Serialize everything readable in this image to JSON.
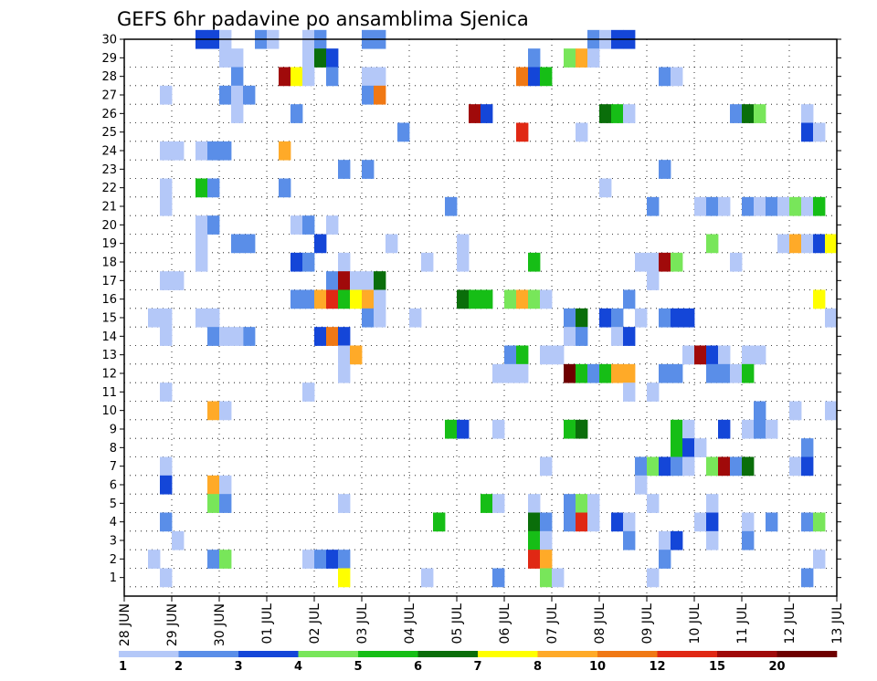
{
  "chart_data": {
    "type": "heatmap",
    "title": "GEFS 6hr padavine po ansamblima Sjenica",
    "xlabel": "",
    "ylabel": "",
    "x_tick_labels": [
      "28 JUN",
      "29 JUN",
      "30 JUN",
      "01 JUL",
      "02 JUL",
      "03 JUL",
      "04 JUL",
      "05 JUL",
      "06 JUL",
      "07 JUL",
      "08 JUL",
      "09 JUL",
      "10 JUL",
      "11 JUL",
      "12 JUL",
      "13 JUL"
    ],
    "y_tick_labels": [
      "1",
      "2",
      "3",
      "4",
      "5",
      "6",
      "7",
      "8",
      "9",
      "10",
      "11",
      "12",
      "13",
      "14",
      "15",
      "16",
      "17",
      "18",
      "19",
      "20",
      "21",
      "22",
      "23",
      "24",
      "25",
      "26",
      "27",
      "28",
      "29",
      "30"
    ],
    "time_steps": 60,
    "members": 30,
    "grid": true,
    "legend": "bottom",
    "color_levels": [
      1,
      2,
      3,
      4,
      5,
      6,
      7,
      8,
      10,
      12,
      15,
      20
    ],
    "level_colors": [
      "#b4c8f8",
      "#5a8ee8",
      "#1446d8",
      "#78e65a",
      "#16be16",
      "#0a6e0a",
      "#ffff00",
      "#ffaa28",
      "#f07814",
      "#e02814",
      "#a00a0a",
      "#6e0000"
    ],
    "cells": [
      [
        7,
        30,
        3
      ],
      [
        8,
        30,
        3
      ],
      [
        9,
        30,
        1
      ],
      [
        12,
        30,
        2
      ],
      [
        13,
        30,
        1
      ],
      [
        16,
        30,
        1
      ],
      [
        17,
        30,
        2
      ],
      [
        21,
        30,
        2
      ],
      [
        22,
        30,
        2
      ],
      [
        40,
        30,
        2
      ],
      [
        41,
        30,
        1
      ],
      [
        42,
        30,
        3
      ],
      [
        43,
        30,
        3
      ],
      [
        9,
        29,
        1
      ],
      [
        10,
        29,
        1
      ],
      [
        16,
        29,
        1
      ],
      [
        17,
        29,
        6
      ],
      [
        18,
        29,
        3
      ],
      [
        35,
        29,
        2
      ],
      [
        38,
        29,
        4
      ],
      [
        39,
        29,
        8
      ],
      [
        40,
        29,
        1
      ],
      [
        10,
        28,
        2
      ],
      [
        14,
        28,
        11
      ],
      [
        15,
        28,
        7
      ],
      [
        16,
        28,
        1
      ],
      [
        18,
        28,
        2
      ],
      [
        21,
        28,
        1
      ],
      [
        22,
        28,
        1
      ],
      [
        34,
        28,
        9
      ],
      [
        35,
        28,
        3
      ],
      [
        36,
        28,
        5
      ],
      [
        46,
        28,
        2
      ],
      [
        47,
        28,
        1
      ],
      [
        4,
        27,
        1
      ],
      [
        9,
        27,
        2
      ],
      [
        10,
        27,
        1
      ],
      [
        11,
        27,
        2
      ],
      [
        21,
        27,
        2
      ],
      [
        22,
        27,
        9
      ],
      [
        10,
        26,
        1
      ],
      [
        15,
        26,
        2
      ],
      [
        30,
        26,
        11
      ],
      [
        31,
        26,
        3
      ],
      [
        41,
        26,
        6
      ],
      [
        42,
        26,
        5
      ],
      [
        43,
        26,
        1
      ],
      [
        52,
        26,
        2
      ],
      [
        53,
        26,
        6
      ],
      [
        54,
        26,
        4
      ],
      [
        58,
        26,
        1
      ],
      [
        24,
        25,
        2
      ],
      [
        34,
        25,
        10
      ],
      [
        39,
        25,
        1
      ],
      [
        58,
        25,
        3
      ],
      [
        59,
        25,
        1
      ],
      [
        4,
        24,
        1
      ],
      [
        5,
        24,
        1
      ],
      [
        7,
        24,
        1
      ],
      [
        8,
        24,
        2
      ],
      [
        9,
        24,
        2
      ],
      [
        14,
        24,
        8
      ],
      [
        19,
        23,
        2
      ],
      [
        21,
        23,
        2
      ],
      [
        46,
        23,
        2
      ],
      [
        4,
        22,
        1
      ],
      [
        7,
        22,
        5
      ],
      [
        8,
        22,
        2
      ],
      [
        14,
        22,
        2
      ],
      [
        41,
        22,
        1
      ],
      [
        4,
        21,
        1
      ],
      [
        28,
        21,
        2
      ],
      [
        45,
        21,
        2
      ],
      [
        49,
        21,
        1
      ],
      [
        50,
        21,
        2
      ],
      [
        51,
        21,
        1
      ],
      [
        53,
        21,
        2
      ],
      [
        54,
        21,
        1
      ],
      [
        55,
        21,
        2
      ],
      [
        56,
        21,
        1
      ],
      [
        57,
        21,
        4
      ],
      [
        58,
        21,
        1
      ],
      [
        59,
        21,
        5
      ],
      [
        7,
        20,
        1
      ],
      [
        8,
        20,
        2
      ],
      [
        15,
        20,
        1
      ],
      [
        16,
        20,
        2
      ],
      [
        18,
        20,
        1
      ],
      [
        7,
        19,
        1
      ],
      [
        10,
        19,
        2
      ],
      [
        11,
        19,
        2
      ],
      [
        17,
        19,
        3
      ],
      [
        23,
        19,
        1
      ],
      [
        29,
        19,
        1
      ],
      [
        50,
        19,
        4
      ],
      [
        56,
        19,
        1
      ],
      [
        57,
        19,
        8
      ],
      [
        58,
        19,
        1
      ],
      [
        59,
        19,
        3
      ],
      [
        60,
        19,
        7
      ],
      [
        7,
        18,
        1
      ],
      [
        15,
        18,
        3
      ],
      [
        16,
        18,
        2
      ],
      [
        19,
        18,
        1
      ],
      [
        26,
        18,
        1
      ],
      [
        29,
        18,
        1
      ],
      [
        35,
        18,
        5
      ],
      [
        44,
        18,
        1
      ],
      [
        45,
        18,
        1
      ],
      [
        46,
        18,
        11
      ],
      [
        47,
        18,
        4
      ],
      [
        52,
        18,
        1
      ],
      [
        4,
        17,
        1
      ],
      [
        5,
        17,
        1
      ],
      [
        18,
        17,
        2
      ],
      [
        19,
        17,
        11
      ],
      [
        20,
        17,
        1
      ],
      [
        21,
        17,
        1
      ],
      [
        22,
        17,
        6
      ],
      [
        45,
        17,
        1
      ],
      [
        15,
        16,
        2
      ],
      [
        16,
        16,
        2
      ],
      [
        17,
        16,
        8
      ],
      [
        18,
        16,
        10
      ],
      [
        19,
        16,
        5
      ],
      [
        20,
        16,
        7
      ],
      [
        21,
        16,
        8
      ],
      [
        22,
        16,
        1
      ],
      [
        29,
        16,
        6
      ],
      [
        30,
        16,
        5
      ],
      [
        31,
        16,
        5
      ],
      [
        33,
        16,
        4
      ],
      [
        34,
        16,
        8
      ],
      [
        35,
        16,
        4
      ],
      [
        36,
        16,
        1
      ],
      [
        43,
        16,
        2
      ],
      [
        59,
        16,
        7
      ],
      [
        3,
        15,
        1
      ],
      [
        4,
        15,
        1
      ],
      [
        7,
        15,
        1
      ],
      [
        8,
        15,
        1
      ],
      [
        21,
        15,
        2
      ],
      [
        22,
        15,
        1
      ],
      [
        25,
        15,
        1
      ],
      [
        38,
        15,
        2
      ],
      [
        39,
        15,
        6
      ],
      [
        41,
        15,
        3
      ],
      [
        42,
        15,
        2
      ],
      [
        44,
        15,
        1
      ],
      [
        46,
        15,
        2
      ],
      [
        47,
        15,
        3
      ],
      [
        48,
        15,
        3
      ],
      [
        60,
        15,
        1
      ],
      [
        4,
        14,
        1
      ],
      [
        11,
        14,
        2
      ],
      [
        8,
        14,
        2
      ],
      [
        9,
        14,
        1
      ],
      [
        10,
        14,
        1
      ],
      [
        17,
        14,
        3
      ],
      [
        18,
        14,
        9
      ],
      [
        19,
        14,
        3
      ],
      [
        38,
        14,
        1
      ],
      [
        39,
        14,
        2
      ],
      [
        42,
        14,
        1
      ],
      [
        43,
        14,
        3
      ],
      [
        19,
        13,
        1
      ],
      [
        20,
        13,
        8
      ],
      [
        33,
        13,
        2
      ],
      [
        34,
        13,
        5
      ],
      [
        36,
        13,
        1
      ],
      [
        37,
        13,
        1
      ],
      [
        48,
        13,
        1
      ],
      [
        49,
        13,
        11
      ],
      [
        50,
        13,
        3
      ],
      [
        51,
        13,
        1
      ],
      [
        53,
        13,
        1
      ],
      [
        54,
        13,
        1
      ],
      [
        19,
        12,
        1
      ],
      [
        32,
        12,
        1
      ],
      [
        33,
        12,
        1
      ],
      [
        34,
        12,
        1
      ],
      [
        38,
        12,
        12
      ],
      [
        39,
        12,
        5
      ],
      [
        40,
        12,
        2
      ],
      [
        41,
        12,
        5
      ],
      [
        42,
        12,
        8
      ],
      [
        43,
        12,
        8
      ],
      [
        46,
        12,
        2
      ],
      [
        47,
        12,
        2
      ],
      [
        50,
        12,
        2
      ],
      [
        51,
        12,
        2
      ],
      [
        52,
        12,
        1
      ],
      [
        53,
        12,
        5
      ],
      [
        4,
        11,
        1
      ],
      [
        16,
        11,
        1
      ],
      [
        43,
        11,
        1
      ],
      [
        45,
        11,
        1
      ],
      [
        8,
        10,
        8
      ],
      [
        9,
        10,
        1
      ],
      [
        54,
        10,
        2
      ],
      [
        57,
        10,
        1
      ],
      [
        60,
        10,
        1
      ],
      [
        28,
        9,
        5
      ],
      [
        29,
        9,
        3
      ],
      [
        32,
        9,
        1
      ],
      [
        38,
        9,
        5
      ],
      [
        39,
        9,
        6
      ],
      [
        47,
        9,
        5
      ],
      [
        48,
        9,
        1
      ],
      [
        51,
        9,
        3
      ],
      [
        53,
        9,
        1
      ],
      [
        54,
        9,
        2
      ],
      [
        55,
        9,
        1
      ],
      [
        47,
        8,
        5
      ],
      [
        48,
        8,
        3
      ],
      [
        49,
        8,
        1
      ],
      [
        58,
        8,
        2
      ],
      [
        4,
        7,
        1
      ],
      [
        36,
        7,
        1
      ],
      [
        44,
        7,
        2
      ],
      [
        45,
        7,
        4
      ],
      [
        46,
        7,
        3
      ],
      [
        47,
        7,
        2
      ],
      [
        48,
        7,
        1
      ],
      [
        50,
        7,
        4
      ],
      [
        51,
        7,
        11
      ],
      [
        52,
        7,
        2
      ],
      [
        53,
        7,
        6
      ],
      [
        57,
        7,
        1
      ],
      [
        58,
        7,
        3
      ],
      [
        4,
        6,
        3
      ],
      [
        8,
        6,
        8
      ],
      [
        9,
        6,
        1
      ],
      [
        44,
        6,
        1
      ],
      [
        8,
        5,
        4
      ],
      [
        9,
        5,
        2
      ],
      [
        19,
        5,
        1
      ],
      [
        31,
        5,
        5
      ],
      [
        32,
        5,
        1
      ],
      [
        35,
        5,
        1
      ],
      [
        38,
        5,
        2
      ],
      [
        39,
        5,
        4
      ],
      [
        40,
        5,
        1
      ],
      [
        45,
        5,
        1
      ],
      [
        50,
        5,
        1
      ],
      [
        4,
        4,
        2
      ],
      [
        27,
        4,
        5
      ],
      [
        35,
        4,
        6
      ],
      [
        36,
        4,
        2
      ],
      [
        38,
        4,
        2
      ],
      [
        39,
        4,
        10
      ],
      [
        40,
        4,
        1
      ],
      [
        42,
        4,
        3
      ],
      [
        43,
        4,
        1
      ],
      [
        49,
        4,
        1
      ],
      [
        50,
        4,
        3
      ],
      [
        53,
        4,
        1
      ],
      [
        55,
        4,
        2
      ],
      [
        58,
        4,
        2
      ],
      [
        59,
        4,
        4
      ],
      [
        5,
        3,
        1
      ],
      [
        35,
        3,
        5
      ],
      [
        36,
        3,
        1
      ],
      [
        43,
        3,
        2
      ],
      [
        46,
        3,
        1
      ],
      [
        47,
        3,
        3
      ],
      [
        50,
        3,
        1
      ],
      [
        53,
        3,
        2
      ],
      [
        3,
        2,
        1
      ],
      [
        8,
        2,
        2
      ],
      [
        9,
        2,
        4
      ],
      [
        16,
        2,
        1
      ],
      [
        17,
        2,
        2
      ],
      [
        18,
        2,
        3
      ],
      [
        19,
        2,
        2
      ],
      [
        35,
        2,
        10
      ],
      [
        36,
        2,
        8
      ],
      [
        46,
        2,
        2
      ],
      [
        59,
        2,
        1
      ],
      [
        4,
        1,
        1
      ],
      [
        19,
        1,
        7
      ],
      [
        26,
        1,
        1
      ],
      [
        32,
        1,
        2
      ],
      [
        36,
        1,
        4
      ],
      [
        37,
        1,
        1
      ],
      [
        45,
        1,
        1
      ],
      [
        58,
        1,
        2
      ]
    ]
  },
  "legend_labels": [
    "1",
    "2",
    "3",
    "4",
    "5",
    "6",
    "7",
    "8",
    "10",
    "12",
    "15",
    "20"
  ]
}
